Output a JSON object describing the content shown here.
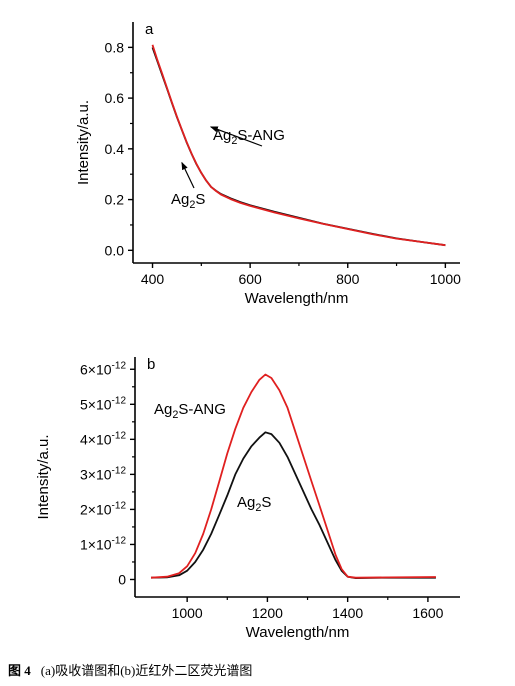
{
  "chart_data": [
    {
      "type": "line",
      "panel_label": "a",
      "xlabel": "Wavelength/nm",
      "ylabel": "Intensity/a.u.",
      "xlim": [
        360,
        1030
      ],
      "ylim": [
        -0.05,
        0.9
      ],
      "xticks": [
        400,
        600,
        800,
        1000
      ],
      "yticks": [
        0.0,
        0.2,
        0.4,
        0.6,
        0.8
      ],
      "ytick_labels": [
        "0.0",
        "0.2",
        "0.4",
        "0.6",
        "0.8"
      ],
      "grid": false,
      "series": [
        {
          "name": "Ag2S",
          "color": "#111111",
          "x": [
            400,
            410,
            420,
            430,
            440,
            450,
            460,
            470,
            480,
            490,
            500,
            510,
            520,
            530,
            540,
            560,
            580,
            600,
            650,
            700,
            750,
            800,
            850,
            900,
            950,
            1000
          ],
          "y": [
            0.8,
            0.745,
            0.69,
            0.635,
            0.58,
            0.525,
            0.475,
            0.425,
            0.38,
            0.34,
            0.305,
            0.275,
            0.25,
            0.235,
            0.222,
            0.205,
            0.19,
            0.178,
            0.152,
            0.128,
            0.105,
            0.085,
            0.065,
            0.047,
            0.033,
            0.02
          ]
        },
        {
          "name": "Ag2S-ANG",
          "color": "#e02020",
          "x": [
            400,
            410,
            420,
            430,
            440,
            450,
            460,
            470,
            480,
            490,
            500,
            510,
            520,
            530,
            540,
            560,
            580,
            600,
            650,
            700,
            750,
            800,
            850,
            900,
            950,
            1000
          ],
          "y": [
            0.81,
            0.75,
            0.695,
            0.638,
            0.582,
            0.527,
            0.476,
            0.426,
            0.381,
            0.341,
            0.305,
            0.275,
            0.25,
            0.234,
            0.22,
            0.202,
            0.187,
            0.175,
            0.149,
            0.126,
            0.104,
            0.084,
            0.064,
            0.046,
            0.033,
            0.02
          ]
        }
      ],
      "annotations": [
        {
          "main": "Ag",
          "sub": "2",
          "tail": "S-ANG",
          "arrow_to": [
            540,
            0.25
          ]
        },
        {
          "main": "Ag",
          "sub": "2",
          "tail": "S",
          "arrow_to": [
            495,
            0.33
          ]
        }
      ]
    },
    {
      "type": "line",
      "panel_label": "b",
      "xlabel": "Wavelength/nm",
      "ylabel": "Intensity/a.u.",
      "xlim": [
        870,
        1680
      ],
      "ylim": [
        -5e-13,
        6.35e-12
      ],
      "xticks": [
        1000,
        1200,
        1400,
        1600
      ],
      "yticks": [
        0,
        1e-12,
        2e-12,
        3e-12,
        4e-12,
        5e-12,
        6e-12
      ],
      "ytick_labels": [
        {
          "mantissa": "0",
          "exp": ""
        },
        {
          "mantissa": "1×10",
          "exp": "-12"
        },
        {
          "mantissa": "2×10",
          "exp": "-12"
        },
        {
          "mantissa": "3×10",
          "exp": "-12"
        },
        {
          "mantissa": "4×10",
          "exp": "-12"
        },
        {
          "mantissa": "5×10",
          "exp": "-12"
        },
        {
          "mantissa": "6×10",
          "exp": "-12"
        }
      ],
      "grid": false,
      "series": [
        {
          "name": "Ag2S",
          "color": "#111111",
          "x": [
            910,
            950,
            980,
            1000,
            1020,
            1040,
            1060,
            1080,
            1100,
            1120,
            1140,
            1160,
            1180,
            1195,
            1210,
            1230,
            1250,
            1270,
            1290,
            1310,
            1330,
            1350,
            1370,
            1385,
            1400,
            1420,
            1500,
            1620
          ],
          "y": [
            5e-14,
            6e-14,
            1.2e-13,
            2.5e-13,
            5e-13,
            8.5e-13,
            1.3e-12,
            1.85e-12,
            2.4e-12,
            3e-12,
            3.45e-12,
            3.8e-12,
            4.05e-12,
            4.2e-12,
            4.15e-12,
            3.9e-12,
            3.5e-12,
            3e-12,
            2.5e-12,
            2e-12,
            1.55e-12,
            1.05e-12,
            5.5e-13,
            2.5e-13,
            8e-14,
            4e-14,
            5e-14,
            5e-14
          ]
        },
        {
          "name": "Ag2S-ANG",
          "color": "#e02020",
          "x": [
            910,
            950,
            980,
            1000,
            1020,
            1040,
            1060,
            1080,
            1100,
            1120,
            1140,
            1160,
            1180,
            1195,
            1210,
            1230,
            1250,
            1270,
            1290,
            1310,
            1330,
            1350,
            1370,
            1385,
            1400,
            1420,
            1500,
            1620
          ],
          "y": [
            5e-14,
            8e-14,
            1.8e-13,
            3.8e-13,
            7.5e-13,
            1.3e-12,
            2e-12,
            2.8e-12,
            3.6e-12,
            4.3e-12,
            4.9e-12,
            5.35e-12,
            5.7e-12,
            5.85e-12,
            5.75e-12,
            5.4e-12,
            4.9e-12,
            4.2e-12,
            3.5e-12,
            2.8e-12,
            2.1e-12,
            1.4e-12,
            7e-13,
            3e-13,
            8e-14,
            5e-14,
            6e-14,
            7e-14
          ]
        }
      ],
      "annotations": [
        {
          "main": "Ag",
          "sub": "2",
          "tail": "S-ANG"
        },
        {
          "main": "Ag",
          "sub": "2",
          "tail": "S"
        }
      ]
    }
  ],
  "caption": {
    "label": "图 4",
    "text": "(a)吸收谱图和(b)近红外二区荧光谱图"
  }
}
